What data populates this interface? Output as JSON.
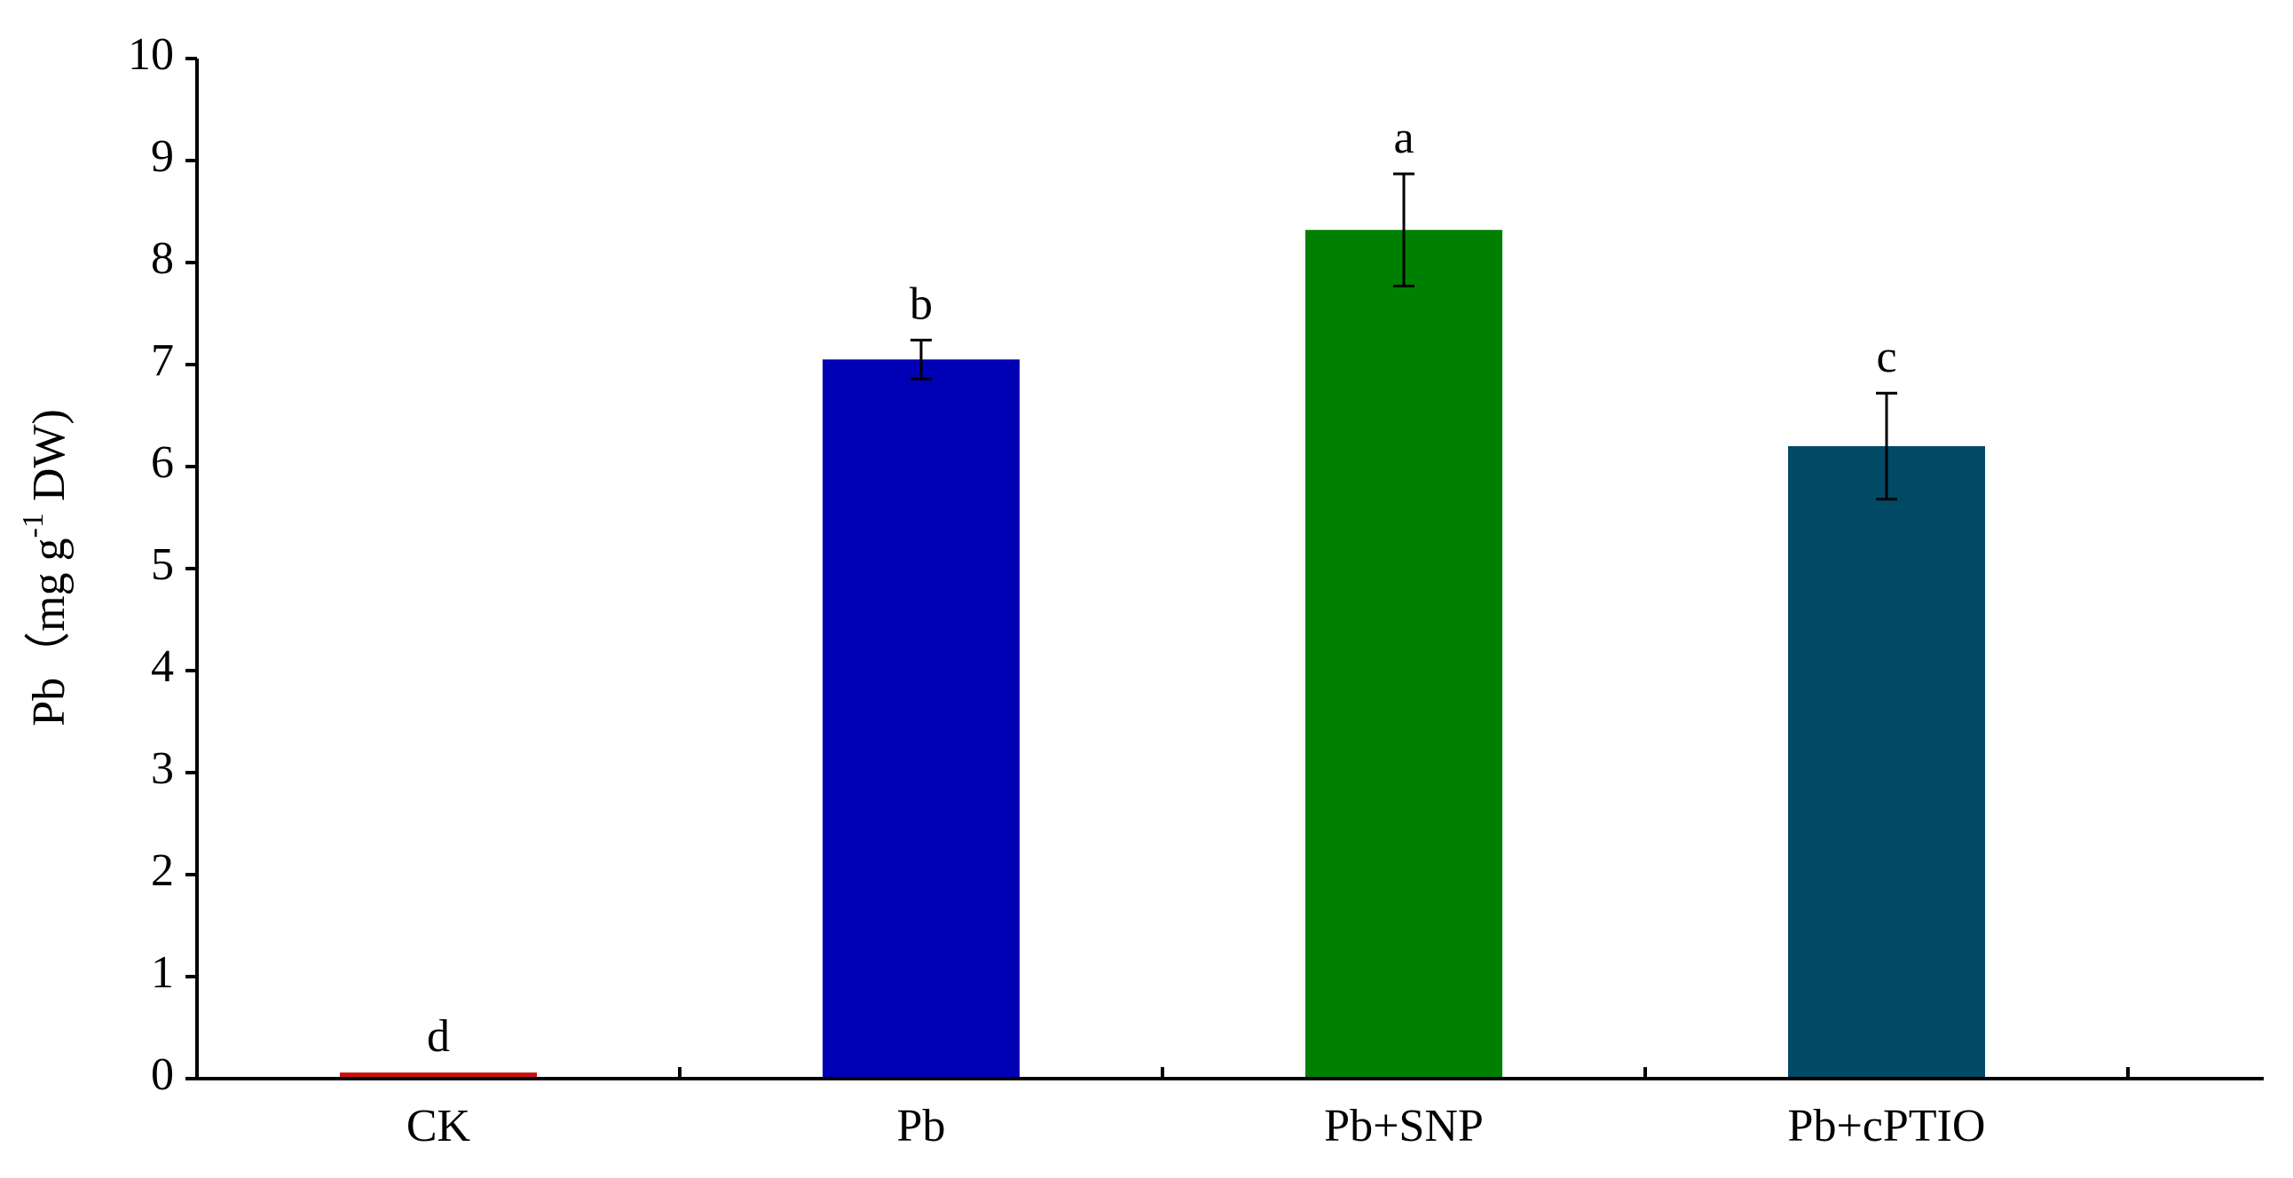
{
  "chart_data": {
    "type": "bar",
    "ylabel": {
      "parts": [
        "Pb（mg g",
        "-1",
        " DW)"
      ]
    },
    "categories": [
      "CK",
      "Pb",
      "Pb+SNP",
      "Pb+cPTIO"
    ],
    "values": [
      0.06,
      7.05,
      8.32,
      6.2
    ],
    "errors": [
      0,
      0.19,
      0.55,
      0.52
    ],
    "letters": [
      "d",
      "b",
      "a",
      "c"
    ],
    "colors": [
      "#cc1010",
      "#0000b4",
      "#008000",
      "#004a66"
    ],
    "ylim": [
      0,
      10
    ],
    "yticks": [
      0,
      1,
      2,
      3,
      4,
      5,
      6,
      7,
      8,
      9,
      10
    ],
    "grid": false
  }
}
